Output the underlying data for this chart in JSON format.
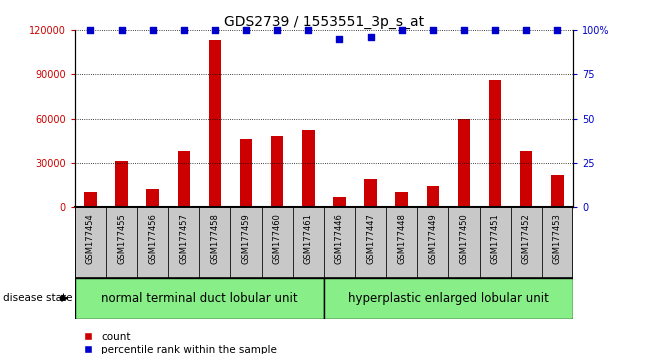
{
  "title": "GDS2739 / 1553551_3p_s_at",
  "samples": [
    "GSM177454",
    "GSM177455",
    "GSM177456",
    "GSM177457",
    "GSM177458",
    "GSM177459",
    "GSM177460",
    "GSM177461",
    "GSM177446",
    "GSM177447",
    "GSM177448",
    "GSM177449",
    "GSM177450",
    "GSM177451",
    "GSM177452",
    "GSM177453"
  ],
  "counts": [
    10000,
    31000,
    12000,
    38000,
    113000,
    46000,
    48000,
    52000,
    7000,
    19000,
    10000,
    14000,
    60000,
    86000,
    38000,
    22000
  ],
  "percentiles": [
    100,
    100,
    100,
    100,
    100,
    100,
    100,
    100,
    95,
    96,
    100,
    100,
    100,
    100,
    100,
    100
  ],
  "bar_color": "#cc0000",
  "dot_color": "#0000cc",
  "ylim_left": [
    0,
    120000
  ],
  "ylim_right": [
    0,
    100
  ],
  "yticks_left": [
    0,
    30000,
    60000,
    90000,
    120000
  ],
  "yticks_right": [
    0,
    25,
    50,
    75,
    100
  ],
  "ytick_labels_left": [
    "0",
    "30000",
    "60000",
    "90000",
    "120000"
  ],
  "ytick_labels_right": [
    "0",
    "25",
    "50",
    "75",
    "100%"
  ],
  "group1_label": "normal terminal duct lobular unit",
  "group2_label": "hyperplastic enlarged lobular unit",
  "group1_count": 8,
  "group2_count": 8,
  "disease_state_label": "disease state",
  "legend_count_label": "count",
  "legend_pct_label": "percentile rank within the sample",
  "title_fontsize": 10,
  "tick_fontsize": 7,
  "sample_fontsize": 6,
  "group_label_fontsize": 8.5,
  "legend_fontsize": 7.5,
  "bar_color_hex": "#cc0000",
  "dot_color_hex": "#0000cc",
  "left_tick_color": "#cc0000",
  "right_tick_color": "#0000cc",
  "bg_xtick": "#c8c8c8",
  "bg_group": "#88ee88"
}
